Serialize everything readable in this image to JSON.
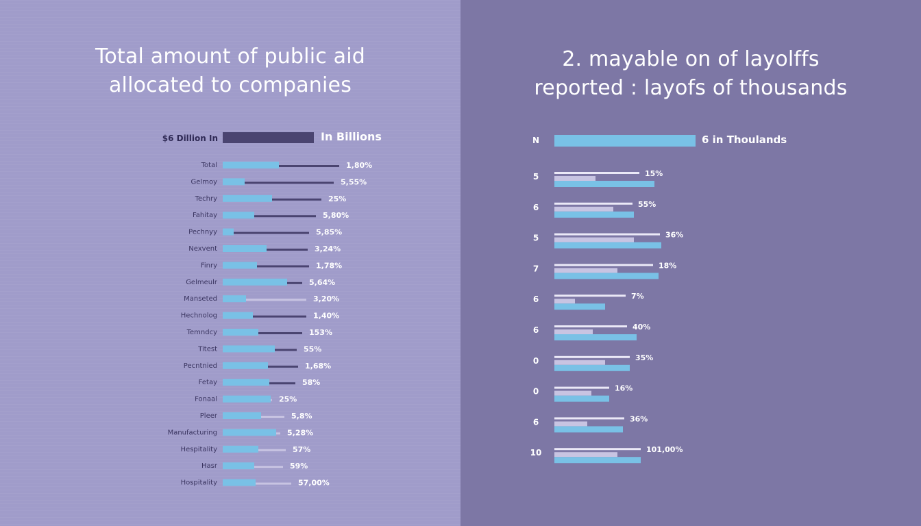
{
  "colors": {
    "left_bg": "#a09cca",
    "right_bg": "#7d77a5",
    "bar_light": "#79c1e6",
    "bar_dark": "#4a4470",
    "bar_faint": "#c8c4e2",
    "text_white": "#ffffff"
  },
  "chart_data": [
    {
      "type": "bar",
      "orientation": "horizontal",
      "title": [
        "Total amount of public aid",
        "allocated to companies"
      ],
      "legend": {
        "left_text": "$6 Dillion In",
        "right_text": "In Billions"
      },
      "categories": [
        "Total",
        "Gelmoy",
        "Techry",
        "Fahitay",
        "Pechnyy",
        "Nexvent",
        "Finry",
        "Gelmeulr",
        "Manseted",
        "Hechnolog",
        "Temndcy",
        "Titest",
        "Pecntnied",
        "Fetay",
        "Fonaal",
        "Pleer",
        "Manufacturing",
        "Hespitality",
        "Hasr",
        "Hospitality"
      ],
      "series": [
        {
          "values": [
            41,
            16,
            36,
            23,
            8,
            32,
            25,
            47,
            17,
            22,
            26,
            38,
            33,
            34,
            35,
            28,
            39,
            26,
            23,
            24
          ]
        },
        {
          "values": [
            85,
            81,
            72,
            68,
            63,
            62,
            63,
            58,
            61,
            61,
            58,
            54,
            55,
            53,
            36,
            45,
            42,
            46,
            44,
            50
          ]
        }
      ],
      "value_labels": [
        "1,80%",
        "5,55%",
        "25%",
        "5,80%",
        "5,85%",
        "3,24%",
        "1,78%",
        "5,64%",
        "3,20%",
        "1,40%",
        "153%",
        "55%",
        "1,68%",
        "58%",
        "25%",
        "5,8%",
        "5,28%",
        "57%",
        "59%",
        "57,00%"
      ],
      "xlim": [
        0,
        100
      ]
    },
    {
      "type": "bar",
      "orientation": "horizontal",
      "title": [
        "2. mayable on of layolffs",
        "reported : layofs of thousands"
      ],
      "legend": {
        "left_text": "N",
        "right_text": "6 in Thoulands"
      },
      "categories": [
        "5",
        "6",
        "5",
        "7",
        "6",
        "6",
        "0",
        "0",
        "6",
        "10"
      ],
      "series": [
        {
          "values": [
            62,
            57,
            77,
            72,
            52,
            53,
            55,
            40,
            51,
            63
          ]
        },
        {
          "values": [
            30,
            43,
            58,
            46,
            15,
            28,
            37,
            27,
            24,
            46
          ]
        },
        {
          "values": [
            73,
            58,
            78,
            76,
            37,
            60,
            55,
            40,
            50,
            63
          ]
        }
      ],
      "value_labels": [
        "15%",
        "55%",
        "36%",
        "18%",
        "7%",
        "40%",
        "35%",
        "16%",
        "36%",
        "101,00%"
      ],
      "xlim": [
        0,
        100
      ]
    }
  ]
}
